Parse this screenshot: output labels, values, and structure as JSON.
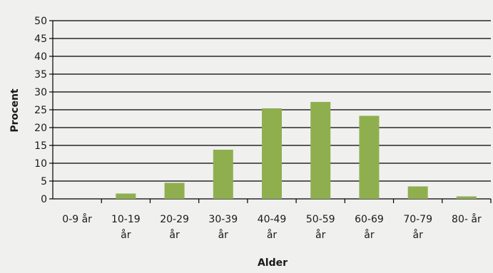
{
  "chart_data": {
    "type": "bar",
    "xlabel": "Alder",
    "ylabel": "Procent",
    "ylim": [
      0,
      50
    ],
    "yticks": [
      0,
      5,
      10,
      15,
      20,
      25,
      30,
      35,
      40,
      45,
      50
    ],
    "grid": "horizontal",
    "bar_color": "#8faf4f",
    "categories": [
      [
        "0-9 år"
      ],
      [
        "10-19",
        "år"
      ],
      [
        "20-29",
        "år"
      ],
      [
        "30-39",
        "år"
      ],
      [
        "40-49",
        "år"
      ],
      [
        "50-59",
        "år"
      ],
      [
        "60-69",
        "år"
      ],
      [
        "70-79",
        "år"
      ],
      [
        "80- år"
      ]
    ],
    "values": [
      0,
      1.5,
      4.5,
      13.8,
      25.4,
      27.2,
      23.3,
      3.5,
      0.7
    ]
  }
}
